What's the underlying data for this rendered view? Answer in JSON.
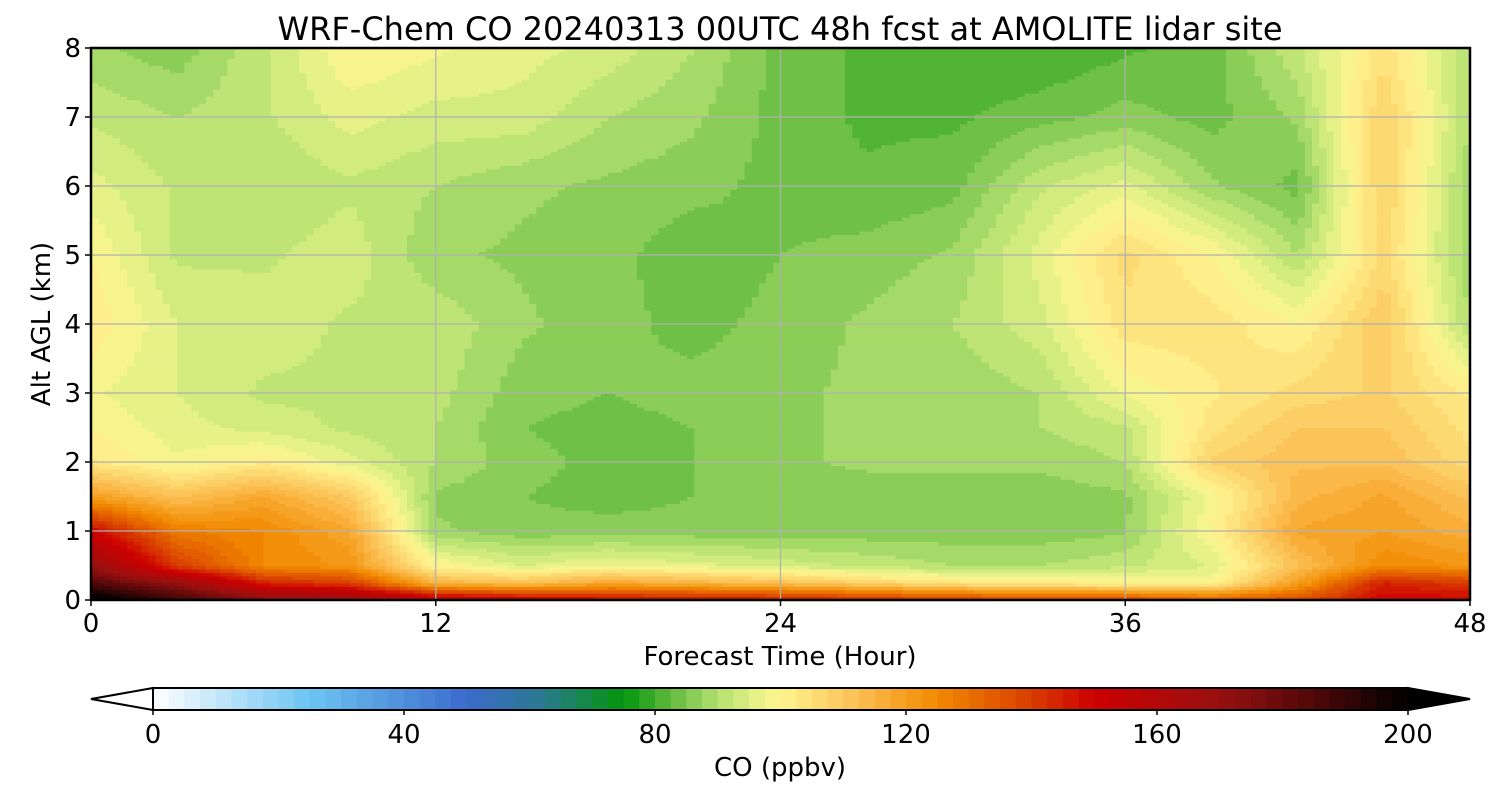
{
  "chart_data": {
    "type": "heatmap",
    "subtype": "filled-contour",
    "title": "WRF-Chem CO  20240313 00UTC 48h fcst at AMOLITE lidar site",
    "xlabel": "Forecast Time (Hour)",
    "ylabel": "Alt AGL (km)",
    "xlim": [
      0,
      48
    ],
    "ylim": [
      0,
      8
    ],
    "xticks": [
      "0",
      "12",
      "24",
      "36",
      "48"
    ],
    "yticks": [
      "0",
      "1",
      "2",
      "3",
      "4",
      "5",
      "6",
      "7",
      "8"
    ],
    "grid": true,
    "x": [
      0,
      3,
      6,
      9,
      12,
      15,
      18,
      21,
      24,
      27,
      30,
      33,
      36,
      39,
      42,
      45,
      48
    ],
    "y": [
      0,
      0.25,
      0.5,
      1,
      1.5,
      2,
      2.5,
      3,
      4,
      5,
      6,
      7,
      8
    ],
    "z": [
      [
        205,
        190,
        175,
        170,
        160,
        155,
        150,
        150,
        148,
        145,
        142,
        140,
        140,
        135,
        138,
        150,
        150
      ],
      [
        185,
        170,
        145,
        140,
        115,
        112,
        118,
        115,
        112,
        108,
        104,
        102,
        100,
        100,
        120,
        145,
        140
      ],
      [
        170,
        140,
        125,
        122,
        100,
        95,
        98,
        96,
        94,
        92,
        90,
        90,
        92,
        95,
        112,
        125,
        122
      ],
      [
        150,
        128,
        125,
        118,
        88,
        86,
        86,
        86,
        86,
        86,
        86,
        86,
        87,
        100,
        118,
        120,
        116
      ],
      [
        120,
        112,
        118,
        110,
        87,
        85,
        84,
        85,
        86,
        86,
        86,
        86,
        87,
        98,
        114,
        118,
        112
      ],
      [
        103,
        98,
        102,
        96,
        90,
        86,
        84,
        85,
        87,
        88,
        88,
        88,
        90,
        108,
        112,
        112,
        106
      ],
      [
        100,
        96,
        94,
        92,
        90,
        85,
        84,
        85,
        87,
        88,
        88,
        90,
        92,
        104,
        110,
        110,
        104
      ],
      [
        98,
        95,
        92,
        92,
        91,
        86,
        85,
        86,
        87,
        88,
        88,
        90,
        98,
        102,
        106,
        108,
        102
      ],
      [
        102,
        95,
        94,
        92,
        92,
        88,
        86,
        84,
        86,
        88,
        90,
        94,
        104,
        104,
        100,
        110,
        90
      ],
      [
        100,
        92,
        92,
        94,
        88,
        87,
        86,
        83,
        85,
        86,
        88,
        96,
        106,
        100,
        90,
        106,
        88
      ],
      [
        96,
        92,
        90,
        92,
        90,
        88,
        87,
        86,
        84,
        83,
        84,
        92,
        96,
        88,
        84,
        108,
        88
      ],
      [
        92,
        90,
        92,
        96,
        94,
        94,
        90,
        88,
        84,
        82,
        82,
        84,
        86,
        84,
        88,
        108,
        90
      ],
      [
        88,
        86,
        92,
        100,
        98,
        96,
        94,
        90,
        84,
        82,
        80,
        80,
        82,
        84,
        92,
        104,
        90
      ]
    ],
    "colorbar": {
      "label": "CO  (ppbv)",
      "min": 0,
      "max": 200,
      "step": 2.5,
      "extend": "both",
      "ticks": [
        "0",
        "40",
        "80",
        "120",
        "160",
        "200"
      ],
      "anchors": [
        {
          "v": 0,
          "c": "#ffffff"
        },
        {
          "v": 25,
          "c": "#6cc4f2"
        },
        {
          "v": 50,
          "c": "#3a6ccc"
        },
        {
          "v": 62,
          "c": "#2a7a90"
        },
        {
          "v": 75,
          "c": "#02960a"
        },
        {
          "v": 82,
          "c": "#5ab83a"
        },
        {
          "v": 90,
          "c": "#b4e070"
        },
        {
          "v": 97,
          "c": "#ecf48a"
        },
        {
          "v": 100,
          "c": "#fff490"
        },
        {
          "v": 110,
          "c": "#fcc860"
        },
        {
          "v": 125,
          "c": "#f28a00"
        },
        {
          "v": 140,
          "c": "#d83c00"
        },
        {
          "v": 150,
          "c": "#cc0000"
        },
        {
          "v": 170,
          "c": "#981010"
        },
        {
          "v": 185,
          "c": "#500808"
        },
        {
          "v": 200,
          "c": "#000000"
        }
      ]
    }
  }
}
